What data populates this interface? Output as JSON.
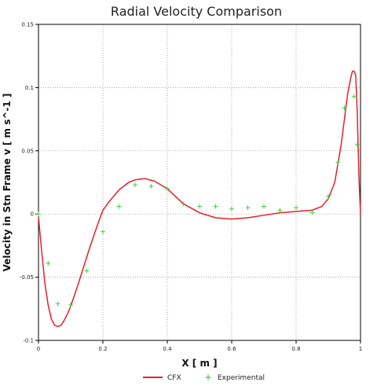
{
  "chart_data": {
    "type": "line",
    "title": "Radial Velocity Comparison",
    "xlabel": "X [ m ]",
    "ylabel": "Velocity in Stn Frame v [ m s^-1 ]",
    "xlim": [
      0,
      1
    ],
    "ylim": [
      -0.1,
      0.15
    ],
    "x_ticks": [
      0,
      0.2,
      0.4,
      0.6,
      0.8,
      1
    ],
    "x_tick_labels": [
      "0",
      "0.2",
      "0.4",
      "0.6",
      "0.8",
      "1"
    ],
    "y_ticks": [
      -0.1,
      -0.05,
      0,
      0.05,
      0.1,
      0.15
    ],
    "y_tick_labels": [
      "-0.1",
      "-0.05",
      "0",
      "0.05",
      "0.1",
      "0.15"
    ],
    "grid": true,
    "legend_position": "bottom",
    "series": [
      {
        "name": "CFX",
        "kind": "line",
        "color": "#e8202a",
        "x": [
          0,
          0.01,
          0.02,
          0.03,
          0.04,
          0.05,
          0.06,
          0.07,
          0.08,
          0.09,
          0.1,
          0.12,
          0.14,
          0.16,
          0.18,
          0.2,
          0.22,
          0.25,
          0.28,
          0.3,
          0.33,
          0.36,
          0.4,
          0.45,
          0.5,
          0.55,
          0.6,
          0.65,
          0.7,
          0.75,
          0.8,
          0.85,
          0.88,
          0.9,
          0.92,
          0.94,
          0.95,
          0.96,
          0.97,
          0.975,
          0.98,
          0.985,
          0.99,
          0.995,
          1.0
        ],
        "y": [
          -0.002,
          -0.03,
          -0.055,
          -0.072,
          -0.083,
          -0.088,
          -0.089,
          -0.088,
          -0.084,
          -0.079,
          -0.073,
          -0.058,
          -0.042,
          -0.026,
          -0.011,
          0.003,
          0.01,
          0.019,
          0.025,
          0.027,
          0.028,
          0.026,
          0.02,
          0.008,
          0.001,
          -0.003,
          -0.004,
          -0.003,
          -0.001,
          0.001,
          0.002,
          0.003,
          0.006,
          0.012,
          0.025,
          0.055,
          0.075,
          0.095,
          0.108,
          0.113,
          0.113,
          0.11,
          0.08,
          0.03,
          0.0
        ]
      },
      {
        "name": "Experimental",
        "kind": "scatter",
        "marker": "+",
        "color": "#40d040",
        "x": [
          0.0,
          0.03,
          0.06,
          0.1,
          0.15,
          0.2,
          0.25,
          0.3,
          0.35,
          0.4,
          0.45,
          0.5,
          0.55,
          0.6,
          0.65,
          0.7,
          0.75,
          0.8,
          0.85,
          0.9,
          0.93,
          0.95,
          0.98,
          0.99
        ],
        "y": [
          0.0,
          -0.039,
          -0.071,
          -0.072,
          -0.045,
          -0.014,
          0.006,
          0.023,
          0.022,
          0.02,
          0.008,
          0.006,
          0.006,
          0.004,
          0.005,
          0.006,
          0.003,
          0.005,
          0.001,
          0.014,
          0.041,
          0.084,
          0.093,
          0.055
        ]
      }
    ]
  }
}
